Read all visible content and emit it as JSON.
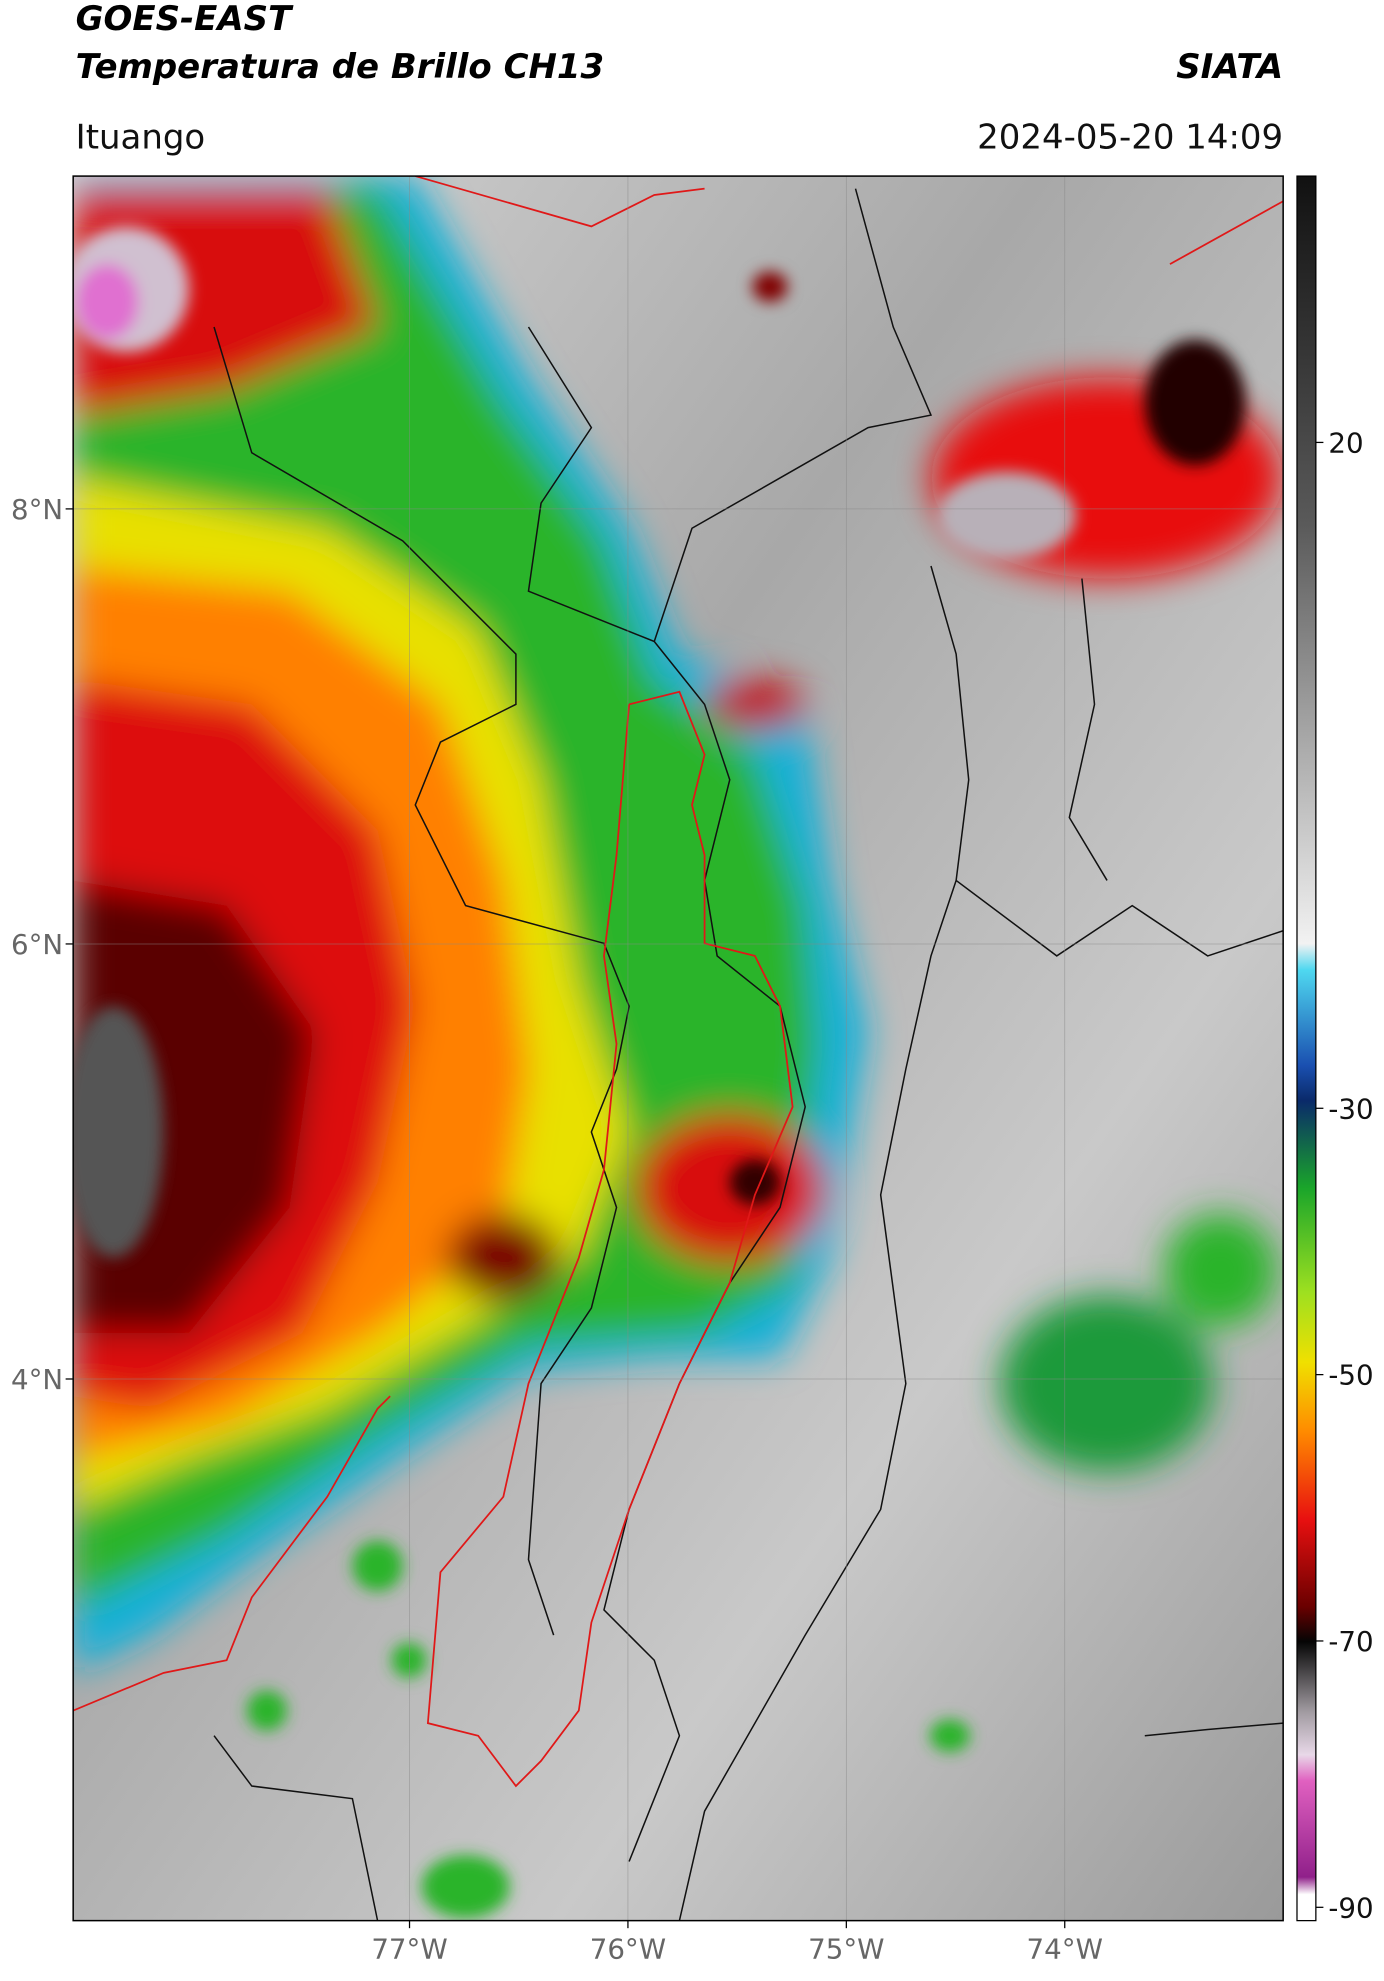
{
  "header": {
    "title": "GOES-EAST",
    "subtitle": "Temperatura de Brillo CH13",
    "brand": "SIATA",
    "location": "Ituango",
    "datetime": "2024-05-20 14:09"
  },
  "map": {
    "xlim": [
      -78.54,
      -73.0
    ],
    "ylim": [
      1.51,
      9.53
    ],
    "xticks": [
      {
        "value": -77,
        "label": "77°W"
      },
      {
        "value": -76,
        "label": "76°W"
      },
      {
        "value": -75,
        "label": "75°W"
      },
      {
        "value": -74,
        "label": "74°W"
      }
    ],
    "yticks": [
      {
        "value": 8,
        "label": "8°N"
      },
      {
        "value": 6,
        "label": "6°N"
      },
      {
        "value": 4,
        "label": "4°N"
      }
    ],
    "grid": true
  },
  "colorbar": {
    "lim": [
      -91,
      40
    ],
    "ticks": [
      20,
      -30,
      -50,
      -70,
      -90
    ]
  }
}
